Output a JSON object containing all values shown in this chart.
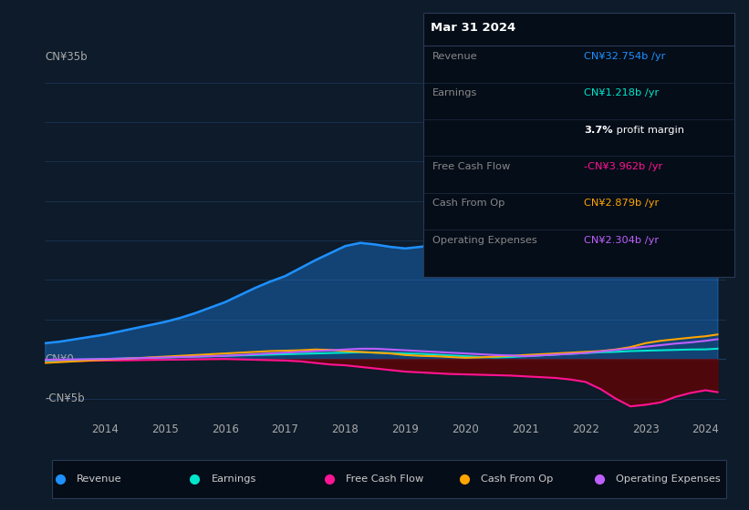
{
  "bg_color": "#0d1b2a",
  "plot_bg_color": "#0d1b2a",
  "ylabel_35": "CN¥35b",
  "ylabel_0": "CN¥0",
  "ylabel_neg5": "-CN¥5b",
  "x_ticks": [
    2014,
    2015,
    2016,
    2017,
    2018,
    2019,
    2020,
    2021,
    2022,
    2023,
    2024
  ],
  "xlim": [
    2013.0,
    2024.35
  ],
  "ylim": [
    -7.5,
    39
  ],
  "series": {
    "Revenue": {
      "color": "#1e90ff",
      "fill": true,
      "fill_color": "#1e90ff",
      "fill_alpha": 0.35,
      "data_x": [
        2013.0,
        2013.25,
        2013.5,
        2013.75,
        2014.0,
        2014.25,
        2014.5,
        2014.75,
        2015.0,
        2015.25,
        2015.5,
        2015.75,
        2016.0,
        2016.25,
        2016.5,
        2016.75,
        2017.0,
        2017.25,
        2017.5,
        2017.75,
        2018.0,
        2018.25,
        2018.5,
        2018.75,
        2019.0,
        2019.25,
        2019.5,
        2019.75,
        2020.0,
        2020.25,
        2020.5,
        2020.75,
        2021.0,
        2021.25,
        2021.5,
        2021.75,
        2022.0,
        2022.25,
        2022.5,
        2022.75,
        2023.0,
        2023.25,
        2023.5,
        2023.75,
        2024.0,
        2024.2
      ],
      "data_y": [
        2.0,
        2.2,
        2.5,
        2.8,
        3.1,
        3.5,
        3.9,
        4.3,
        4.7,
        5.2,
        5.8,
        6.5,
        7.2,
        8.1,
        9.0,
        9.8,
        10.5,
        11.5,
        12.5,
        13.4,
        14.3,
        14.7,
        14.5,
        14.2,
        14.0,
        14.2,
        14.5,
        14.8,
        15.0,
        15.4,
        15.7,
        16.0,
        16.2,
        16.5,
        15.8,
        16.0,
        16.5,
        19.5,
        22.5,
        25.5,
        28.0,
        29.0,
        29.5,
        30.5,
        32.754,
        35.0
      ]
    },
    "Earnings": {
      "color": "#00e5cc",
      "fill": false,
      "data_x": [
        2013.0,
        2013.25,
        2013.5,
        2013.75,
        2014.0,
        2014.25,
        2014.5,
        2014.75,
        2015.0,
        2015.25,
        2015.5,
        2015.75,
        2016.0,
        2016.25,
        2016.5,
        2016.75,
        2017.0,
        2017.25,
        2017.5,
        2017.75,
        2018.0,
        2018.25,
        2018.5,
        2018.75,
        2019.0,
        2019.25,
        2019.5,
        2019.75,
        2020.0,
        2020.25,
        2020.5,
        2020.75,
        2021.0,
        2021.25,
        2021.5,
        2021.75,
        2022.0,
        2022.25,
        2022.5,
        2022.75,
        2023.0,
        2023.25,
        2023.5,
        2023.75,
        2024.0,
        2024.2
      ],
      "data_y": [
        -0.2,
        -0.15,
        -0.1,
        -0.05,
        0.0,
        0.05,
        0.1,
        0.15,
        0.2,
        0.25,
        0.3,
        0.35,
        0.4,
        0.45,
        0.5,
        0.55,
        0.6,
        0.65,
        0.7,
        0.75,
        0.8,
        0.85,
        0.8,
        0.75,
        0.7,
        0.65,
        0.55,
        0.45,
        0.35,
        0.25,
        0.2,
        0.25,
        0.35,
        0.45,
        0.55,
        0.65,
        0.75,
        0.85,
        0.9,
        1.0,
        1.05,
        1.1,
        1.15,
        1.2,
        1.218,
        1.3
      ]
    },
    "Free Cash Flow": {
      "color": "#ff1493",
      "fill": true,
      "fill_color": "#6b0000",
      "fill_alpha": 0.7,
      "data_x": [
        2013.0,
        2013.25,
        2013.5,
        2013.75,
        2014.0,
        2014.25,
        2014.5,
        2014.75,
        2015.0,
        2015.25,
        2015.5,
        2015.75,
        2016.0,
        2016.25,
        2016.5,
        2016.75,
        2017.0,
        2017.25,
        2017.5,
        2017.75,
        2018.0,
        2018.25,
        2018.5,
        2018.75,
        2019.0,
        2019.25,
        2019.5,
        2019.75,
        2020.0,
        2020.25,
        2020.5,
        2020.75,
        2021.0,
        2021.25,
        2021.5,
        2021.75,
        2022.0,
        2022.25,
        2022.5,
        2022.75,
        2023.0,
        2023.25,
        2023.5,
        2023.75,
        2024.0,
        2024.2
      ],
      "data_y": [
        -0.3,
        -0.28,
        -0.25,
        -0.22,
        -0.2,
        -0.18,
        -0.15,
        -0.12,
        -0.1,
        -0.08,
        -0.05,
        -0.02,
        0.0,
        -0.05,
        -0.1,
        -0.15,
        -0.2,
        -0.3,
        -0.5,
        -0.7,
        -0.8,
        -1.0,
        -1.2,
        -1.4,
        -1.6,
        -1.7,
        -1.8,
        -1.9,
        -1.95,
        -2.0,
        -2.05,
        -2.1,
        -2.2,
        -2.3,
        -2.4,
        -2.6,
        -2.9,
        -3.8,
        -5.0,
        -6.0,
        -5.8,
        -5.5,
        -4.8,
        -4.3,
        -3.962,
        -4.2
      ]
    },
    "Cash From Op": {
      "color": "#ffa500",
      "fill": false,
      "data_x": [
        2013.0,
        2013.25,
        2013.5,
        2013.75,
        2014.0,
        2014.25,
        2014.5,
        2014.75,
        2015.0,
        2015.25,
        2015.5,
        2015.75,
        2016.0,
        2016.25,
        2016.5,
        2016.75,
        2017.0,
        2017.25,
        2017.5,
        2017.75,
        2018.0,
        2018.25,
        2018.5,
        2018.75,
        2019.0,
        2019.25,
        2019.5,
        2019.75,
        2020.0,
        2020.25,
        2020.5,
        2020.75,
        2021.0,
        2021.25,
        2021.5,
        2021.75,
        2022.0,
        2022.25,
        2022.5,
        2022.75,
        2023.0,
        2023.25,
        2023.5,
        2023.75,
        2024.0,
        2024.2
      ],
      "data_y": [
        -0.5,
        -0.4,
        -0.3,
        -0.2,
        -0.1,
        0.0,
        0.1,
        0.2,
        0.3,
        0.4,
        0.5,
        0.6,
        0.7,
        0.8,
        0.9,
        1.0,
        1.05,
        1.1,
        1.2,
        1.15,
        1.0,
        0.9,
        0.8,
        0.7,
        0.5,
        0.4,
        0.35,
        0.25,
        0.15,
        0.2,
        0.3,
        0.4,
        0.5,
        0.6,
        0.7,
        0.8,
        0.9,
        1.0,
        1.2,
        1.5,
        2.0,
        2.3,
        2.5,
        2.7,
        2.879,
        3.1
      ]
    },
    "Operating Expenses": {
      "color": "#bf5fff",
      "fill": false,
      "data_x": [
        2013.0,
        2013.25,
        2013.5,
        2013.75,
        2014.0,
        2014.25,
        2014.5,
        2014.75,
        2015.0,
        2015.25,
        2015.5,
        2015.75,
        2016.0,
        2016.25,
        2016.5,
        2016.75,
        2017.0,
        2017.25,
        2017.5,
        2017.75,
        2018.0,
        2018.25,
        2018.5,
        2018.75,
        2019.0,
        2019.25,
        2019.5,
        2019.75,
        2020.0,
        2020.25,
        2020.5,
        2020.75,
        2021.0,
        2021.25,
        2021.5,
        2021.75,
        2022.0,
        2022.25,
        2022.5,
        2022.75,
        2023.0,
        2023.25,
        2023.5,
        2023.75,
        2024.0,
        2024.2
      ],
      "data_y": [
        -0.1,
        -0.08,
        -0.05,
        -0.03,
        0.0,
        0.05,
        0.1,
        0.15,
        0.2,
        0.25,
        0.3,
        0.35,
        0.4,
        0.5,
        0.6,
        0.7,
        0.8,
        0.9,
        1.0,
        1.1,
        1.2,
        1.3,
        1.3,
        1.2,
        1.1,
        1.0,
        0.9,
        0.8,
        0.7,
        0.6,
        0.5,
        0.45,
        0.35,
        0.45,
        0.55,
        0.65,
        0.75,
        0.95,
        1.15,
        1.35,
        1.55,
        1.75,
        1.95,
        2.1,
        2.304,
        2.5
      ]
    }
  },
  "tooltip_date": "Mar 31 2024",
  "tooltip_rows": [
    {
      "label": "Revenue",
      "value": "CN¥32.754b /yr",
      "value_color": "#1e90ff"
    },
    {
      "label": "Earnings",
      "value": "CN¥1.218b /yr",
      "value_color": "#00e5cc"
    },
    {
      "label": "",
      "value": "3.7% profit margin",
      "value_color": "#ffffff",
      "margin_row": true
    },
    {
      "label": "Free Cash Flow",
      "value": "-CN¥3.962b /yr",
      "value_color": "#ff1493"
    },
    {
      "label": "Cash From Op",
      "value": "CN¥2.879b /yr",
      "value_color": "#ffa500"
    },
    {
      "label": "Operating Expenses",
      "value": "CN¥2.304b /yr",
      "value_color": "#bf5fff"
    }
  ],
  "legend": [
    {
      "label": "Revenue",
      "color": "#1e90ff"
    },
    {
      "label": "Earnings",
      "color": "#00e5cc"
    },
    {
      "label": "Free Cash Flow",
      "color": "#ff1493"
    },
    {
      "label": "Cash From Op",
      "color": "#ffa500"
    },
    {
      "label": "Operating Expenses",
      "color": "#bf5fff"
    }
  ]
}
